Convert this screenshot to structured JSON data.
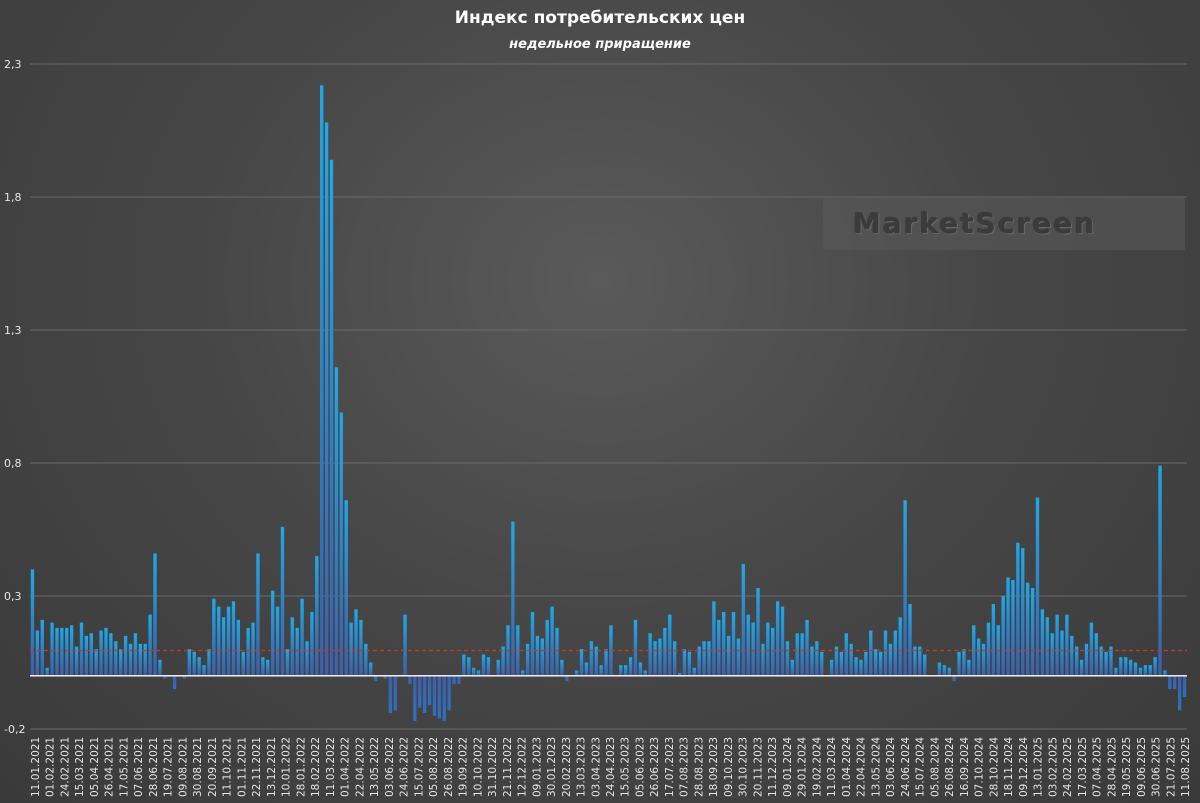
{
  "chart_data": {
    "type": "bar",
    "title": "Индекс потребительских цен",
    "subtitle": "недельное приращение",
    "watermark": "MarketScreen",
    "ylim": [
      -0.2,
      2.3
    ],
    "yticks": [
      "-0,2",
      "0,3",
      "0,8",
      "1,3",
      "1,8",
      "2,3"
    ],
    "ytick_values": [
      -0.2,
      0.3,
      0.8,
      1.3,
      1.8,
      2.3
    ],
    "grid": true,
    "reference_line": {
      "value": 0.095,
      "color": "#c0392b",
      "style": "dashed"
    },
    "colors": {
      "bar_top": "#1fa9e8",
      "bar_bottom": "#3d5fa8",
      "axis": "#ffffff",
      "grid": "#6a6a6a"
    },
    "x_labels": [
      "11.01.2021",
      "01.02.2021",
      "24.02.2021",
      "15.03.2021",
      "05.04.2021",
      "26.04.2021",
      "17.05.2021",
      "07.06.2021",
      "28.06.2021",
      "19.07.2021",
      "09.08.2021",
      "30.08.2021",
      "20.09.2021",
      "11.10.2021",
      "01.11.2021",
      "22.11.2021",
      "13.12.2021",
      "10.01.2022",
      "28.01.2022",
      "18.02.2022",
      "11.03.2022",
      "01.04.2022",
      "22.04.2022",
      "13.05.2022",
      "03.06.2022",
      "24.06.2022",
      "15.07.2022",
      "05.08.2022",
      "26.08.2022",
      "19.09.2022",
      "10.10.2022",
      "31.10.2022",
      "21.11.2022",
      "12.12.2022",
      "09.01.2023",
      "30.01.2023",
      "20.02.2023",
      "13.03.2023",
      "03.04.2023",
      "24.04.2023",
      "15.05.2023",
      "05.06.2023",
      "26.06.2023",
      "17.07.2023",
      "07.08.2023",
      "28.08.2023",
      "18.09.2023",
      "09.10.2023",
      "30.10.2023",
      "20.11.2023",
      "11.12.2023",
      "09.01.2024",
      "29.01.2024",
      "19.02.2024",
      "11.03.2024",
      "01.04.2024",
      "22.04.2024",
      "13.05.2024",
      "03.06.2024",
      "24.06.2024",
      "15.07.2024",
      "05.08.2024",
      "26.08.2024",
      "16.09.2024",
      "07.10.2024",
      "28.10.2024",
      "18.11.2024",
      "09.12.2024",
      "13.01.2025",
      "03.02.2025",
      "24.02.2025",
      "17.03.2025",
      "07.04.2025",
      "28.04.2025",
      "19.05.2025",
      "09.06.2025",
      "30.06.2025",
      "21.07.2025",
      "11.08.2025"
    ],
    "values": [
      0.4,
      0.17,
      0.21,
      0.03,
      0.2,
      0.18,
      0.18,
      0.18,
      0.19,
      0.11,
      0.2,
      0.15,
      0.16,
      0.1,
      0.17,
      0.18,
      0.16,
      0.13,
      0.1,
      0.15,
      0.12,
      0.16,
      0.12,
      0.12,
      0.23,
      0.46,
      0.06,
      -0.01,
      0.0,
      -0.05,
      0.0,
      -0.01,
      0.1,
      0.09,
      0.07,
      0.04,
      0.1,
      0.29,
      0.26,
      0.22,
      0.26,
      0.28,
      0.21,
      0.09,
      0.18,
      0.2,
      0.46,
      0.07,
      0.06,
      0.32,
      0.26,
      0.56,
      0.1,
      0.22,
      0.18,
      0.29,
      0.13,
      0.24,
      0.45,
      2.22,
      2.08,
      1.94,
      1.16,
      0.99,
      0.66,
      0.2,
      0.25,
      0.21,
      0.12,
      0.05,
      -0.02,
      0.0,
      -0.01,
      -0.14,
      -0.13,
      0.0,
      0.23,
      -0.03,
      -0.17,
      -0.12,
      -0.14,
      -0.11,
      -0.15,
      -0.16,
      -0.17,
      -0.13,
      -0.03,
      -0.03,
      0.08,
      0.07,
      0.03,
      0.02,
      0.08,
      0.07,
      0.0,
      0.06,
      0.11,
      0.19,
      0.58,
      0.19,
      0.02,
      0.12,
      0.24,
      0.15,
      0.14,
      0.21,
      0.26,
      0.18,
      0.06,
      -0.02,
      0.0,
      0.02,
      0.1,
      0.05,
      0.13,
      0.11,
      0.04,
      0.1,
      0.19,
      0.0,
      0.04,
      0.04,
      0.07,
      0.21,
      0.05,
      0.02,
      0.16,
      0.13,
      0.14,
      0.18,
      0.23,
      0.13,
      0.01,
      0.1,
      0.09,
      0.03,
      0.11,
      0.13,
      0.13,
      0.28,
      0.21,
      0.24,
      0.15,
      0.24,
      0.14,
      0.42,
      0.23,
      0.2,
      0.33,
      0.12,
      0.2,
      0.18,
      0.28,
      0.26,
      0.13,
      0.06,
      0.16,
      0.16,
      0.21,
      0.11,
      0.13,
      0.09,
      0.0,
      0.06,
      0.11,
      0.09,
      0.16,
      0.12,
      0.07,
      0.06,
      0.09,
      0.17,
      0.1,
      0.09,
      0.17,
      0.12,
      0.17,
      0.22,
      0.66,
      0.27,
      0.11,
      0.11,
      0.08,
      0.0,
      0.0,
      0.05,
      0.04,
      0.03,
      -0.02,
      0.09,
      0.1,
      0.06,
      0.19,
      0.14,
      0.12,
      0.2,
      0.27,
      0.19,
      0.3,
      0.37,
      0.36,
      0.5,
      0.48,
      0.35,
      0.33,
      0.67,
      0.25,
      0.22,
      0.16,
      0.23,
      0.17,
      0.23,
      0.15,
      0.11,
      0.06,
      0.12,
      0.2,
      0.16,
      0.11,
      0.09,
      0.11,
      0.03,
      0.07,
      0.07,
      0.06,
      0.05,
      0.03,
      0.04,
      0.04,
      0.07,
      0.79,
      0.02,
      -0.05,
      -0.05,
      -0.13,
      -0.08
    ]
  }
}
